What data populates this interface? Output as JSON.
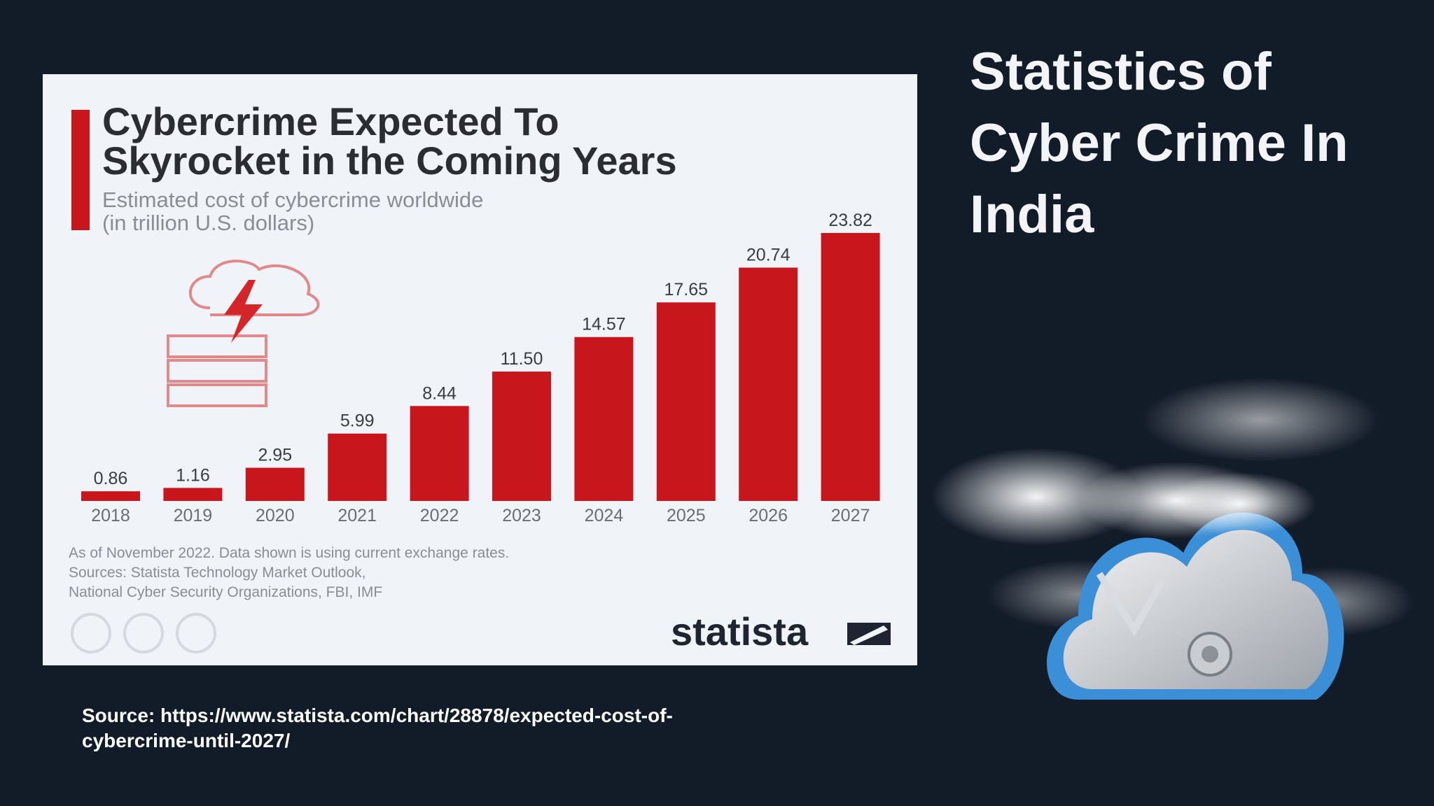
{
  "slide_title": [
    "Statistics of",
    "Cyber Crime In",
    "India"
  ],
  "source": [
    "Source: https://www.statista.com/chart/28878/expected-cost-of-",
    "cybercrime-until-2027/"
  ],
  "chart_data": {
    "type": "bar",
    "title": [
      "Cybercrime Expected To",
      "Skyrocket in the Coming Years"
    ],
    "subtitle": [
      "Estimated cost of cybercrime worldwide",
      "(in trillion U.S. dollars)"
    ],
    "categories": [
      "2018",
      "2019",
      "2020",
      "2021",
      "2022",
      "2023",
      "2024",
      "2025",
      "2026",
      "2027"
    ],
    "values": [
      0.86,
      1.16,
      2.95,
      5.99,
      8.44,
      11.5,
      14.57,
      17.65,
      20.74,
      23.82
    ],
    "value_labels": [
      "0.86",
      "1.16",
      "2.95",
      "5.99",
      "8.44",
      "11.50",
      "14.57",
      "17.65",
      "20.74",
      "23.82"
    ],
    "color": "#c8161d",
    "footnote": [
      "As of November 2022. Data shown is using current exchange rates.",
      "Sources: Statista Technology Market Outlook,",
      "National Cyber Security Organizations, FBI, IMF"
    ],
    "brand": "statista"
  }
}
